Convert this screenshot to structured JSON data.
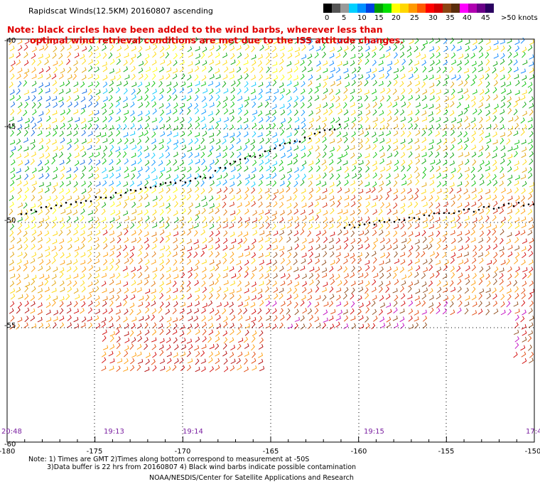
{
  "title": "Rapidscat Winds(12.5KM) 20160807 ascending",
  "note_line1": "Note: black circles have been added to the wind barbs, wherever less than",
  "note_line2": "optimal wind retrieval conditions are met due to the ISS attitude changes.",
  "colorbar": {
    "labels": [
      "0",
      "5",
      "10",
      "15",
      "20",
      "25",
      "30",
      "35",
      "40",
      "45",
      ">50 knots"
    ],
    "colors": [
      "#000000",
      "#555555",
      "#999999",
      "#00d0ff",
      "#0090ff",
      "#0040e0",
      "#00a000",
      "#00e000",
      "#ffff00",
      "#ffd700",
      "#ff9900",
      "#ff5a00",
      "#ff0000",
      "#d00000",
      "#8b4513",
      "#5a2d0c",
      "#ff00ff",
      "#b000b0",
      "#6a0088",
      "#2a0060"
    ]
  },
  "lon_labels": [
    "-180",
    "-175",
    "-170",
    "-165",
    "-160",
    "-155",
    "-150"
  ],
  "lat_labels": [
    "-40",
    "-45",
    "-50",
    "-55",
    "-60"
  ],
  "time_labels": [
    "20:48",
    "19:13",
    "19:14",
    "19:15",
    "17:4"
  ],
  "footer_line1": "Note: 1) Times are GMT 2)Times along bottom correspond to measurement at -50S",
  "footer_line2": "3)Data buffer is 22 hrs from 20160807 4) Black wind barbs indicate possible contamination",
  "footer_line3": "NOAA/NESDIS/Center for Satellite Applications and Research"
}
